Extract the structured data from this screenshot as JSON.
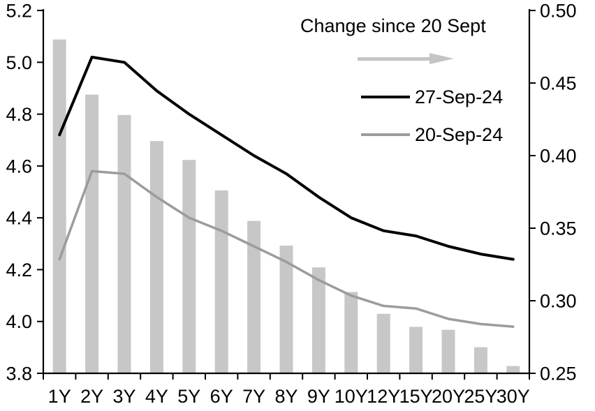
{
  "chart_data": {
    "type": "combo",
    "categories": [
      "1Y",
      "2Y",
      "3Y",
      "4Y",
      "5Y",
      "6Y",
      "7Y",
      "8Y",
      "9Y",
      "10Y",
      "12Y",
      "15Y",
      "20Y",
      "25Y",
      "30Y"
    ],
    "series": [
      {
        "name": "Change since 20 Sept",
        "type": "bar",
        "axis": "right",
        "color": "#c7c7c7",
        "values": [
          0.48,
          0.442,
          0.428,
          0.41,
          0.397,
          0.376,
          0.355,
          0.338,
          0.323,
          0.306,
          0.291,
          0.282,
          0.28,
          0.268,
          0.255
        ]
      },
      {
        "name": "27-Sep-24",
        "type": "line",
        "axis": "left",
        "color": "#000000",
        "width": 4,
        "values": [
          4.72,
          5.02,
          5.0,
          4.89,
          4.8,
          4.72,
          4.64,
          4.57,
          4.48,
          4.4,
          4.35,
          4.33,
          4.29,
          4.26,
          4.24
        ]
      },
      {
        "name": "20-Sep-24",
        "type": "line",
        "axis": "left",
        "color": "#9c9c9c",
        "width": 3.5,
        "values": [
          4.24,
          4.58,
          4.57,
          4.48,
          4.4,
          4.35,
          4.29,
          4.23,
          4.16,
          4.1,
          4.06,
          4.05,
          4.01,
          3.99,
          3.98
        ]
      }
    ],
    "left_axis": {
      "min": 3.8,
      "max": 5.2,
      "step": 0.2,
      "tick_labels": [
        "5.2",
        "5.0",
        "4.8",
        "4.6",
        "4.4",
        "4.2",
        "4.0",
        "3.8"
      ]
    },
    "right_axis": {
      "min": 0.25,
      "max": 0.5,
      "step": 0.05,
      "tick_labels": [
        "0.50",
        "0.45",
        "0.40",
        "0.35",
        "0.30",
        "0.25"
      ]
    },
    "grid": false,
    "legend_position": "inside-top-right"
  },
  "legend": {
    "title": "Change since 20 Sept",
    "arrow_icon": "right-arrow",
    "series": [
      {
        "label": "27-Sep-24"
      },
      {
        "label": "20-Sep-24"
      }
    ]
  }
}
